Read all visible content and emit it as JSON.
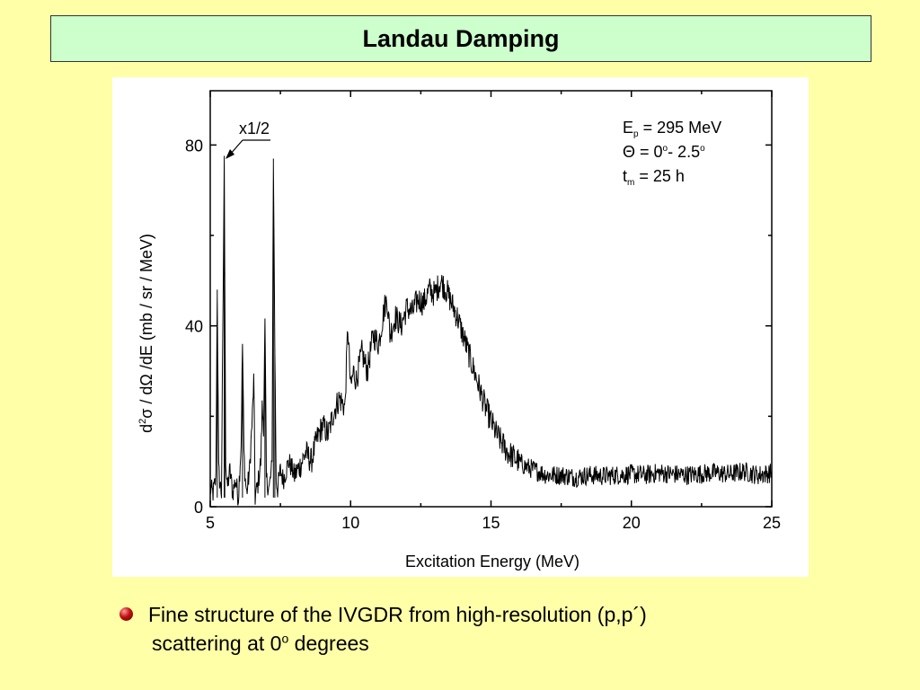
{
  "slide": {
    "title": "Landau Damping",
    "caption_line1": "Fine structure of the IVGDR from high-resolution (p,p´)",
    "caption_line2_prefix": "scattering at 0",
    "caption_line2_sup": "o",
    "caption_line2_suffix": " degrees",
    "colors": {
      "background": "#ffffa8",
      "title_box": "#ccffcc",
      "bullet": "#c01010"
    }
  },
  "chart_data": {
    "type": "line",
    "title": "",
    "xlabel": "Excitation Energy (MeV)",
    "ylabel_parts": {
      "a": "d",
      "a_sup": "2",
      "b": "σ / dΩ /dE (mb / sr / MeV)"
    },
    "xlim": [
      5,
      25
    ],
    "ylim": [
      0,
      92
    ],
    "xticks": [
      5,
      10,
      15,
      20,
      25
    ],
    "yticks": [
      0,
      40,
      80
    ],
    "grid": false,
    "legend": {
      "placement": "top-right",
      "line1": {
        "main": "E",
        "sub": "p",
        "rest": " = 295 MeV"
      },
      "line2": {
        "main": "Θ = 0",
        "sup1": "o",
        "mid": "- 2.5",
        "sup2": "o"
      },
      "line3": {
        "main": "t",
        "sub": "m",
        "rest": " = 25 h"
      }
    },
    "annotation": {
      "text": "x1/2",
      "target": [
        5.5,
        76
      ]
    },
    "series": [
      {
        "x": [
          5.0,
          5.1,
          5.2,
          5.25,
          5.3,
          5.35,
          5.4,
          5.5,
          5.52,
          5.55,
          5.6,
          5.7,
          5.8,
          5.9,
          6.0,
          6.1,
          6.15,
          6.2,
          6.25,
          6.3,
          6.4,
          6.5,
          6.55,
          6.6,
          6.7,
          6.8,
          6.85,
          6.9,
          6.95,
          7.0,
          7.1,
          7.2,
          7.25,
          7.3,
          7.35,
          7.4,
          7.5,
          7.6,
          7.8,
          8.0,
          8.2,
          8.4,
          8.6,
          8.8,
          9.0,
          9.2,
          9.4,
          9.6,
          9.8,
          9.9,
          10.0,
          10.1,
          10.2,
          10.4,
          10.6,
          10.8,
          11.0,
          11.2,
          11.3,
          11.4,
          11.6,
          11.8,
          12.0,
          12.2,
          12.4,
          12.6,
          12.8,
          13.0,
          13.2,
          13.4,
          13.6,
          13.8,
          14.0,
          14.2,
          14.4,
          14.6,
          14.8,
          15.0,
          15.2,
          15.4,
          15.6,
          15.8,
          16.0,
          16.2,
          16.4,
          16.6,
          16.8,
          17.0,
          17.5,
          18.0,
          18.5,
          19.0,
          19.5,
          20.0,
          20.5,
          21.0,
          21.5,
          22.0,
          22.5,
          23.0,
          23.5,
          24.0,
          24.5,
          25.0
        ],
        "y": [
          4,
          3,
          6,
          48,
          8,
          5,
          3,
          76,
          52,
          10,
          4,
          8,
          3,
          6,
          2,
          14,
          36,
          12,
          6,
          3,
          8,
          20,
          28,
          2,
          5,
          10,
          22,
          18,
          40,
          6,
          4,
          9,
          77,
          35,
          6,
          4,
          8,
          6,
          10,
          7,
          9,
          12,
          10,
          15,
          18,
          16,
          21,
          24,
          22,
          40,
          26,
          30,
          28,
          34,
          30,
          38,
          36,
          44,
          46,
          38,
          42,
          40,
          44,
          43,
          46,
          45,
          48,
          47,
          50,
          48,
          45,
          42,
          38,
          34,
          30,
          26,
          22,
          19,
          16,
          14,
          12,
          11,
          10,
          9,
          8.5,
          8,
          7.5,
          7,
          7,
          6.5,
          7,
          6.8,
          7,
          7.2,
          7,
          7.5,
          7.2,
          7,
          7.3,
          7.5,
          7.2,
          7.8,
          7,
          7.5
        ]
      }
    ]
  }
}
